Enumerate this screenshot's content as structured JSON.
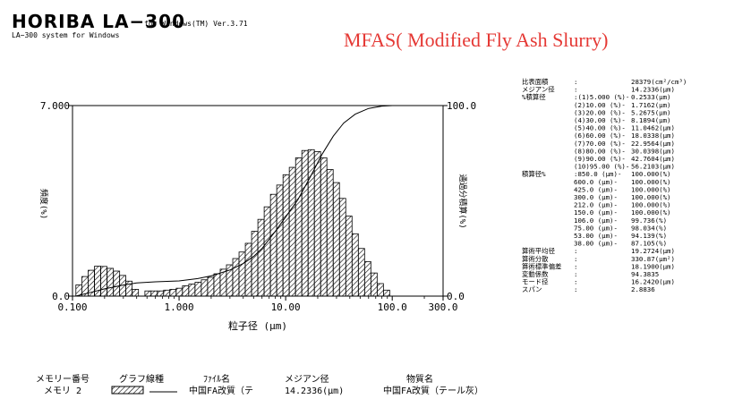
{
  "header": {
    "brand": "HORIBA LA−300",
    "brand_suffix": "for Windows(TM) Ver.3.71",
    "system_line": "LA−300 system for Windows",
    "sample_title": "MFAS( Modified Fly Ash Slurry)"
  },
  "colors": {
    "title": "#e53935",
    "ink": "#000000",
    "background": "#ffffff"
  },
  "chart_data": {
    "type": "bar",
    "xscale": "log",
    "xlabel": "粒子径 (μm)",
    "ylabel_left": "頻度(%)",
    "ylabel_right": "通過分積算(%)",
    "xlim": [
      0.1,
      300.0
    ],
    "ylim_left": [
      0.0,
      7.0
    ],
    "ylim_right": [
      0.0,
      100.0
    ],
    "x_ticks": [
      {
        "value": 0.1,
        "label": "0.100"
      },
      {
        "value": 1.0,
        "label": "1.000"
      },
      {
        "value": 10.0,
        "label": "10.00"
      },
      {
        "value": 100.0,
        "label": "100.0"
      },
      {
        "value": 300.0,
        "label": "300.0"
      }
    ],
    "y_ticks_left": [
      {
        "value": 0.0,
        "label": "0.0"
      },
      {
        "value": 7.0,
        "label": "7.000"
      }
    ],
    "y_ticks_right": [
      {
        "value": 0.0,
        "label": "0.0"
      },
      {
        "value": 100.0,
        "label": "100.0"
      }
    ],
    "bar_style": "hatched",
    "frequency": [
      {
        "x": 0.115,
        "y": 0.41
      },
      {
        "x": 0.131,
        "y": 0.72
      },
      {
        "x": 0.15,
        "y": 0.95
      },
      {
        "x": 0.172,
        "y": 1.1
      },
      {
        "x": 0.197,
        "y": 1.09
      },
      {
        "x": 0.226,
        "y": 1.02
      },
      {
        "x": 0.259,
        "y": 0.92
      },
      {
        "x": 0.296,
        "y": 0.76
      },
      {
        "x": 0.339,
        "y": 0.55
      },
      {
        "x": 0.389,
        "y": 0.25
      },
      {
        "x": 0.511,
        "y": 0.19
      },
      {
        "x": 0.584,
        "y": 0.19
      },
      {
        "x": 0.669,
        "y": 0.19
      },
      {
        "x": 0.766,
        "y": 0.22
      },
      {
        "x": 0.877,
        "y": 0.25
      },
      {
        "x": 1.005,
        "y": 0.29
      },
      {
        "x": 1.151,
        "y": 0.38
      },
      {
        "x": 1.318,
        "y": 0.44
      },
      {
        "x": 1.51,
        "y": 0.51
      },
      {
        "x": 1.729,
        "y": 0.6
      },
      {
        "x": 1.981,
        "y": 0.69
      },
      {
        "x": 2.269,
        "y": 0.82
      },
      {
        "x": 2.599,
        "y": 0.99
      },
      {
        "x": 2.976,
        "y": 1.15
      },
      {
        "x": 3.409,
        "y": 1.38
      },
      {
        "x": 3.905,
        "y": 1.62
      },
      {
        "x": 4.472,
        "y": 1.94
      },
      {
        "x": 5.122,
        "y": 2.38
      },
      {
        "x": 5.867,
        "y": 2.82
      },
      {
        "x": 6.72,
        "y": 3.28
      },
      {
        "x": 7.697,
        "y": 3.74
      },
      {
        "x": 8.816,
        "y": 4.08
      },
      {
        "x": 10.1,
        "y": 4.46
      },
      {
        "x": 11.56,
        "y": 4.73
      },
      {
        "x": 13.25,
        "y": 5.08
      },
      {
        "x": 15.17,
        "y": 5.35
      },
      {
        "x": 17.38,
        "y": 5.38
      },
      {
        "x": 19.9,
        "y": 5.31
      },
      {
        "x": 22.8,
        "y": 5.08
      },
      {
        "x": 26.11,
        "y": 4.65
      },
      {
        "x": 29.91,
        "y": 4.17
      },
      {
        "x": 34.26,
        "y": 3.59
      },
      {
        "x": 39.24,
        "y": 2.94
      },
      {
        "x": 44.94,
        "y": 2.29
      },
      {
        "x": 51.47,
        "y": 1.75
      },
      {
        "x": 58.95,
        "y": 1.27
      },
      {
        "x": 67.52,
        "y": 0.85
      },
      {
        "x": 77.34,
        "y": 0.46
      },
      {
        "x": 88.58,
        "y": 0.22
      }
    ],
    "cumulative": [
      {
        "x": 0.107,
        "y": 0.0
      },
      {
        "x": 0.15,
        "y": 2.0
      },
      {
        "x": 0.2,
        "y": 3.8
      },
      {
        "x": 0.3,
        "y": 5.8
      },
      {
        "x": 0.4,
        "y": 6.9
      },
      {
        "x": 0.6,
        "y": 7.5
      },
      {
        "x": 1.0,
        "y": 8.0
      },
      {
        "x": 1.5,
        "y": 9.2
      },
      {
        "x": 2.0,
        "y": 10.6
      },
      {
        "x": 3.0,
        "y": 13.7
      },
      {
        "x": 4.0,
        "y": 17.1
      },
      {
        "x": 5.0,
        "y": 20.8
      },
      {
        "x": 6.0,
        "y": 25.0
      },
      {
        "x": 8.0,
        "y": 34.0
      },
      {
        "x": 10.0,
        "y": 41.5
      },
      {
        "x": 13.0,
        "y": 50.5
      },
      {
        "x": 17.0,
        "y": 62.5
      },
      {
        "x": 22.0,
        "y": 74.5
      },
      {
        "x": 28.0,
        "y": 84.0
      },
      {
        "x": 35.0,
        "y": 90.8
      },
      {
        "x": 45.0,
        "y": 95.5
      },
      {
        "x": 60.0,
        "y": 98.5
      },
      {
        "x": 80.0,
        "y": 99.7
      },
      {
        "x": 100.0,
        "y": 100.0
      }
    ]
  },
  "stats": {
    "lines": [
      [
        "比表面積",
        ":",
        "28379(cm²/cm³)"
      ],
      [
        "メジアン径",
        ":",
        "14.2336(μm)"
      ],
      [
        "%積算径",
        ":(1)5.000 (%)-",
        "0.2533(μm)"
      ],
      [
        "",
        "(2)10.00 (%)-",
        "1.7162(μm)"
      ],
      [
        "",
        "(3)20.00 (%)-",
        "5.2675(μm)"
      ],
      [
        "",
        "(4)30.00 (%)-",
        "8.1894(μm)"
      ],
      [
        "",
        "(5)40.00 (%)-",
        "11.0462(μm)"
      ],
      [
        "",
        "(6)60.00 (%)-",
        "18.0338(μm)"
      ],
      [
        "",
        "(7)70.00 (%)-",
        "22.9564(μm)"
      ],
      [
        "",
        "(8)80.00 (%)-",
        "30.0398(μm)"
      ],
      [
        "",
        "(9)90.00 (%)-",
        "42.7604(μm)"
      ],
      [
        "",
        "(10)95.00 (%)-",
        "56.2103(μm)"
      ],
      [
        "積算径%",
        ":850.0 (μm)-",
        "100.000(%)"
      ],
      [
        "",
        "600.0 (μm)-",
        "100.000(%)"
      ],
      [
        "",
        "425.0 (μm)-",
        "100.000(%)"
      ],
      [
        "",
        "300.0 (μm)-",
        "100.000(%)"
      ],
      [
        "",
        "212.0 (μm)-",
        "100.000(%)"
      ],
      [
        "",
        "150.0 (μm)-",
        "100.000(%)"
      ],
      [
        "",
        "106.0 (μm)-",
        "99.736(%)"
      ],
      [
        "",
        "75.00 (μm)-",
        "98.034(%)"
      ],
      [
        "",
        "53.00 (μm)-",
        "94.139(%)"
      ],
      [
        "",
        "38.00 (μm)-",
        "87.105(%)"
      ],
      [
        "算術平均径",
        ":",
        "19.2724(μm)"
      ],
      [
        "算術分散",
        ":",
        "330.87(μm²)"
      ],
      [
        "算術標準偏差",
        ":",
        "18.1900(μm)"
      ],
      [
        "変動係数",
        ":",
        "94.3835"
      ],
      [
        "モード径",
        ":",
        "16.2420(μm)"
      ],
      [
        "スパン",
        ":",
        "2.8836"
      ]
    ]
  },
  "legend": {
    "headers": [
      "メモリー番号",
      "グラフ線種",
      "ﾌｧｲﾙ名",
      "メジアン径",
      "物質名"
    ],
    "row": [
      "メモリ 2",
      "中国FA改質（テ",
      "14.2336(μm)",
      "中国FA改質（テール灰）"
    ]
  }
}
